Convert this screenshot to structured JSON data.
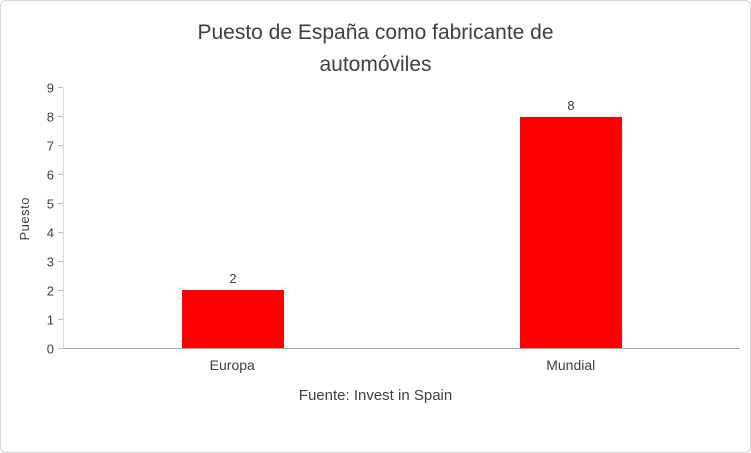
{
  "chart_data": {
    "type": "bar",
    "title": "Puesto de España como fabricante de automóviles",
    "ylabel": "Puesto",
    "xlabel": "",
    "source": "Fuente: Invest in Spain",
    "categories": [
      "Europa",
      "Mundial"
    ],
    "values": [
      2,
      8
    ],
    "data_labels": [
      "2",
      "8"
    ],
    "ylim": [
      0,
      9
    ],
    "yticks": [
      0,
      1,
      2,
      3,
      4,
      5,
      6,
      7,
      8,
      9
    ],
    "grid": false,
    "legend": "none",
    "bar_color": "#ff0000"
  }
}
